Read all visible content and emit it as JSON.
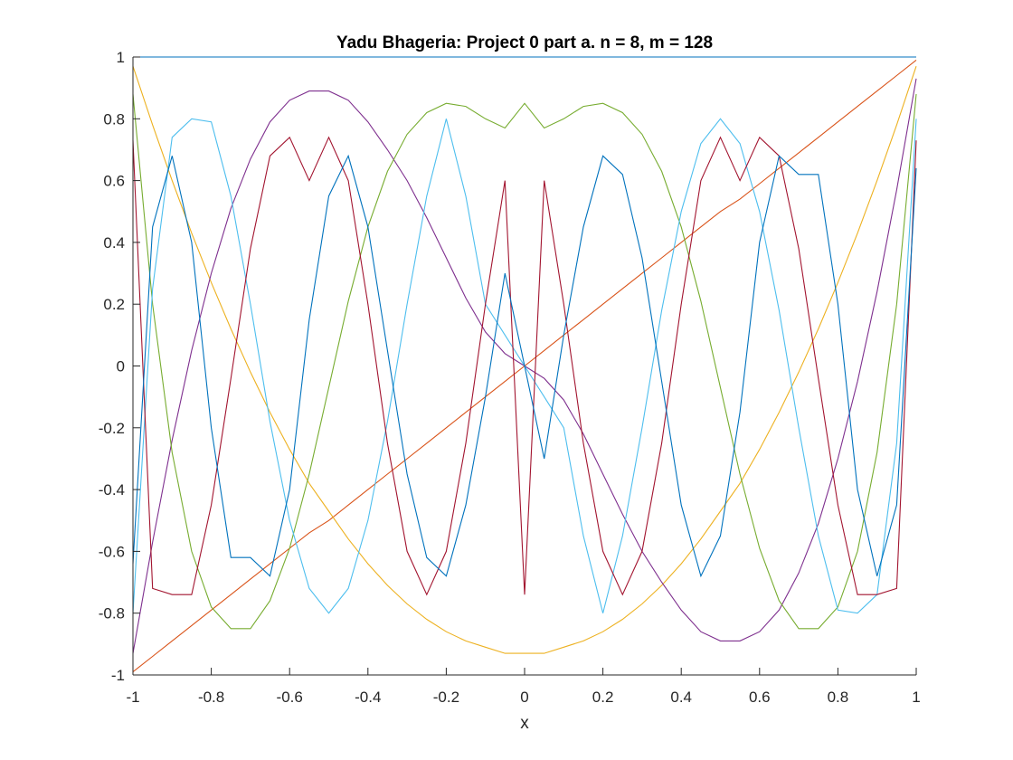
{
  "chart_data": {
    "type": "line",
    "title": "Yadu Bhageria: Project 0 part a. n = 8, m = 128",
    "xlabel": "x",
    "ylabel": "",
    "xlim": [
      -1,
      1
    ],
    "ylim": [
      -1,
      1
    ],
    "xticks": [
      "-1",
      "-0.8",
      "-0.6",
      "-0.4",
      "-0.2",
      "0",
      "0.2",
      "0.4",
      "0.6",
      "0.8",
      "1"
    ],
    "yticks": [
      "-1",
      "-0.8",
      "-0.6",
      "-0.4",
      "-0.2",
      "0",
      "0.2",
      "0.4",
      "0.6",
      "0.8",
      "1"
    ],
    "grid": false,
    "legend": "none",
    "x": [
      -1,
      -0.95,
      -0.9,
      -0.85,
      -0.8,
      -0.75,
      -0.7,
      -0.65,
      -0.6,
      -0.55,
      -0.5,
      -0.45,
      -0.4,
      -0.35,
      -0.3,
      -0.25,
      -0.2,
      -0.15,
      -0.1,
      -0.05,
      0,
      0.05,
      0.1,
      0.15,
      0.2,
      0.25,
      0.3,
      0.35,
      0.4,
      0.45,
      0.5,
      0.55,
      0.6,
      0.65,
      0.7,
      0.75,
      0.8,
      0.85,
      0.9,
      0.95,
      1
    ],
    "series": [
      {
        "color": "#0072BD",
        "values": [
          1,
          1,
          1,
          1,
          1,
          1,
          1,
          1,
          1,
          1,
          1,
          1,
          1,
          1,
          1,
          1,
          1,
          1,
          1,
          1,
          1,
          1,
          1,
          1,
          1,
          1,
          1,
          1,
          1,
          1,
          1,
          1,
          1,
          1,
          1,
          1,
          1,
          1,
          1,
          1,
          1
        ]
      },
      {
        "color": "#D95319",
        "values": [
          -0.99,
          -0.94,
          -0.89,
          -0.84,
          -0.79,
          -0.74,
          -0.69,
          -0.64,
          -0.59,
          -0.54,
          -0.5,
          -0.45,
          -0.4,
          -0.35,
          -0.3,
          -0.25,
          -0.2,
          -0.15,
          -0.1,
          -0.05,
          0,
          0.05,
          0.1,
          0.15,
          0.2,
          0.25,
          0.3,
          0.35,
          0.4,
          0.45,
          0.5,
          0.54,
          0.59,
          0.64,
          0.69,
          0.74,
          0.79,
          0.84,
          0.89,
          0.94,
          0.99
        ]
      },
      {
        "color": "#EDB120",
        "values": [
          0.97,
          0.78,
          0.6,
          0.43,
          0.27,
          0.12,
          -0.02,
          -0.15,
          -0.27,
          -0.38,
          -0.47,
          -0.56,
          -0.64,
          -0.71,
          -0.77,
          -0.82,
          -0.86,
          -0.89,
          -0.91,
          -0.93,
          -0.93,
          -0.93,
          -0.91,
          -0.89,
          -0.86,
          -0.82,
          -0.77,
          -0.71,
          -0.64,
          -0.56,
          -0.47,
          -0.38,
          -0.27,
          -0.15,
          -0.02,
          0.12,
          0.27,
          0.43,
          0.6,
          0.78,
          0.97
        ]
      },
      {
        "color": "#7E2F8E",
        "values": [
          -0.93,
          -0.57,
          -0.24,
          0.05,
          0.3,
          0.51,
          0.67,
          0.79,
          0.86,
          0.89,
          0.89,
          0.86,
          0.79,
          0.7,
          0.6,
          0.48,
          0.35,
          0.22,
          0.11,
          0.04,
          0,
          -0.04,
          -0.11,
          -0.22,
          -0.35,
          -0.48,
          -0.6,
          -0.7,
          -0.79,
          -0.86,
          -0.89,
          -0.89,
          -0.86,
          -0.79,
          -0.67,
          -0.51,
          -0.3,
          -0.05,
          0.24,
          0.57,
          0.93
        ]
      },
      {
        "color": "#77AC30",
        "values": [
          0.88,
          0.2,
          -0.28,
          -0.6,
          -0.78,
          -0.85,
          -0.85,
          -0.76,
          -0.59,
          -0.35,
          -0.07,
          0.21,
          0.45,
          0.63,
          0.75,
          0.82,
          0.85,
          0.84,
          0.8,
          0.77,
          0.85,
          0.77,
          0.8,
          0.84,
          0.85,
          0.82,
          0.75,
          0.63,
          0.45,
          0.21,
          -0.07,
          -0.35,
          -0.59,
          -0.76,
          -0.85,
          -0.85,
          -0.78,
          -0.6,
          -0.28,
          0.2,
          0.88
        ]
      },
      {
        "color": "#4DBEEE",
        "values": [
          -0.8,
          0.25,
          0.74,
          0.8,
          0.79,
          0.55,
          0.2,
          -0.18,
          -0.5,
          -0.72,
          -0.8,
          -0.72,
          -0.5,
          -0.18,
          0.2,
          0.55,
          0.8,
          0.55,
          0.2,
          0.1,
          0,
          -0.1,
          -0.2,
          -0.55,
          -0.8,
          -0.55,
          -0.2,
          0.18,
          0.5,
          0.72,
          0.8,
          0.72,
          0.5,
          0.18,
          -0.2,
          -0.55,
          -0.79,
          -0.8,
          -0.74,
          -0.25,
          0.8
        ]
      },
      {
        "color": "#A2142F",
        "values": [
          0.73,
          -0.72,
          -0.74,
          -0.74,
          -0.45,
          -0.04,
          0.38,
          0.68,
          0.74,
          0.6,
          0.74,
          0.6,
          0.2,
          -0.25,
          -0.6,
          -0.74,
          -0.6,
          -0.25,
          0.2,
          0.6,
          -0.74,
          0.6,
          0.2,
          -0.25,
          -0.6,
          -0.74,
          -0.6,
          -0.25,
          0.2,
          0.6,
          0.74,
          0.6,
          0.74,
          0.68,
          0.38,
          -0.04,
          -0.45,
          -0.74,
          -0.74,
          -0.72,
          0.73
        ]
      },
      {
        "color": "#0072BD",
        "values": [
          -0.64,
          0.45,
          0.68,
          0.4,
          -0.2,
          -0.62,
          -0.62,
          -0.68,
          -0.4,
          0.15,
          0.55,
          0.68,
          0.45,
          0.05,
          -0.35,
          -0.62,
          -0.68,
          -0.45,
          -0.1,
          0.3,
          0,
          -0.3,
          0.1,
          0.45,
          0.68,
          0.62,
          0.35,
          -0.05,
          -0.45,
          -0.68,
          -0.55,
          -0.15,
          0.4,
          0.68,
          0.62,
          0.62,
          0.2,
          -0.4,
          -0.68,
          -0.45,
          0.64
        ]
      }
    ]
  }
}
